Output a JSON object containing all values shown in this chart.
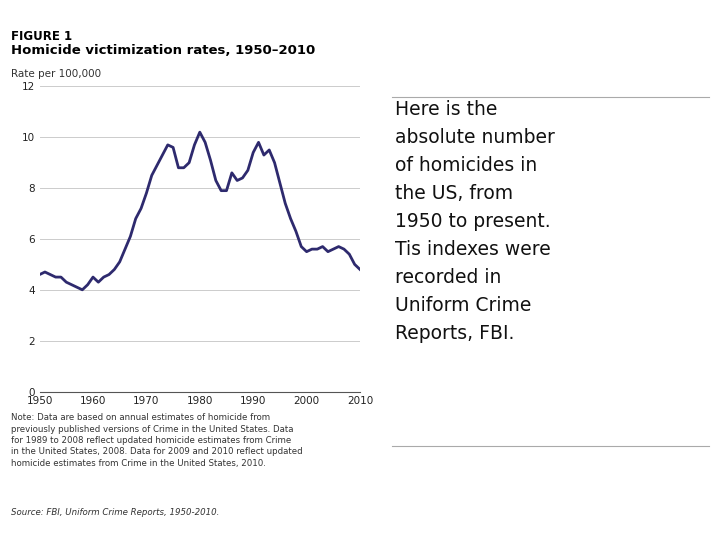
{
  "title_label": "FIGURE 1",
  "subtitle": "Homicide victimization rates, 1950–2010",
  "ylabel": "Rate per 100,000",
  "xlim": [
    1950,
    2010
  ],
  "ylim": [
    0,
    12
  ],
  "yticks": [
    0,
    2,
    4,
    6,
    8,
    10,
    12
  ],
  "xticks": [
    1950,
    1960,
    1970,
    1980,
    1990,
    2000,
    2010
  ],
  "line_color": "#2E2A6E",
  "line_width": 2.0,
  "background_color": "#FFFFFF",
  "plot_bg_color": "#FFFFFF",
  "header_bar_color": "#4A708B",
  "note_text_plain": "Note: Data are based on annual estimates of homicide from\npreviously published versions of ",
  "note_text_italic1": "Crime in the United States.",
  "note_text_after1": " Data\nfor 1989 to 2008 reflect updated homicide estimates from ",
  "note_text_italic2": "Crime\nin the United States, 2008.",
  "note_text_after2": " Data for 2009 and 2010 reflect updated\nhomicide estimates from ",
  "note_text_italic3": "Crime in the United States, 2010.",
  "source_plain": "Source: FBI, ",
  "source_italic": "Uniform Crime Reports, 1950-2010.",
  "right_text": "Here is the\nabsolute number\nof homicides in\nthe US, from\n1950 to present.\nTis indexes were\nrecorded in\nUniform Crime\nReports, FBI.",
  "years": [
    1950,
    1951,
    1952,
    1953,
    1954,
    1955,
    1956,
    1957,
    1958,
    1959,
    1960,
    1961,
    1962,
    1963,
    1964,
    1965,
    1966,
    1967,
    1968,
    1969,
    1970,
    1971,
    1972,
    1973,
    1974,
    1975,
    1976,
    1977,
    1978,
    1979,
    1980,
    1981,
    1982,
    1983,
    1984,
    1985,
    1986,
    1987,
    1988,
    1989,
    1990,
    1991,
    1992,
    1993,
    1994,
    1995,
    1996,
    1997,
    1998,
    1999,
    2000,
    2001,
    2002,
    2003,
    2004,
    2005,
    2006,
    2007,
    2008,
    2009,
    2010
  ],
  "rates": [
    4.6,
    4.7,
    4.6,
    4.5,
    4.5,
    4.3,
    4.2,
    4.1,
    4.0,
    4.2,
    4.5,
    4.3,
    4.5,
    4.6,
    4.8,
    5.1,
    5.6,
    6.1,
    6.8,
    7.2,
    7.8,
    8.5,
    8.9,
    9.3,
    9.7,
    9.6,
    8.8,
    8.8,
    9.0,
    9.7,
    10.2,
    9.8,
    9.1,
    8.3,
    7.9,
    7.9,
    8.6,
    8.3,
    8.4,
    8.7,
    9.4,
    9.8,
    9.3,
    9.5,
    9.0,
    8.2,
    7.4,
    6.8,
    6.3,
    5.7,
    5.5,
    5.6,
    5.6,
    5.7,
    5.5,
    5.6,
    5.7,
    5.6,
    5.4,
    5.0,
    4.8
  ]
}
